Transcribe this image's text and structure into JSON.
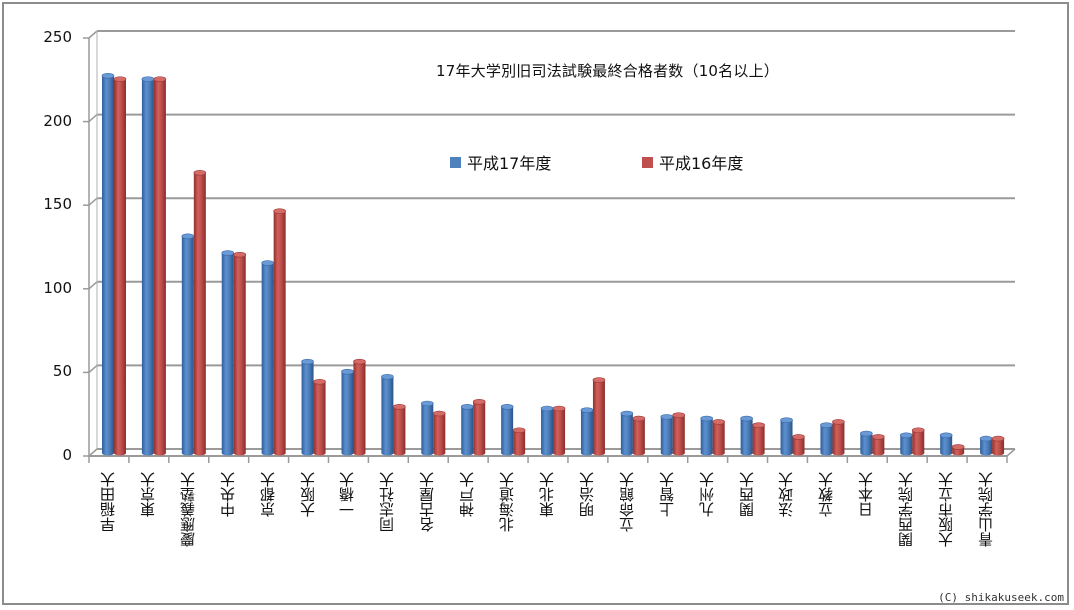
{
  "chart_data": {
    "type": "bar",
    "title": "17年大学別旧司法試験最終合格者数（10名以上）",
    "xlabel": "",
    "ylabel": "",
    "ylim": [
      0,
      250
    ],
    "yticks": [
      0,
      50,
      100,
      150,
      200,
      250
    ],
    "grid": true,
    "legend_position": "top-center",
    "style": "3d-cylinder",
    "categories": [
      "早稲田大",
      "東京大",
      "慶應義塾大",
      "中央大",
      "京都大",
      "大阪大",
      "一橋大",
      "同志社大",
      "名古屋大",
      "神戸大",
      "北海道大",
      "東北大",
      "明治大",
      "立命館大",
      "上智大",
      "九州大",
      "関西大",
      "法政大",
      "立教大",
      "日本大",
      "関西学院大",
      "大阪市立大",
      "青山学院大"
    ],
    "series": [
      {
        "name": "平成17年度",
        "color": "#4f81bd",
        "values": [
          228,
          226,
          132,
          122,
          116,
          57,
          51,
          48,
          32,
          30,
          30,
          29,
          28,
          26,
          24,
          23,
          23,
          22,
          19,
          14,
          13,
          13,
          11
        ]
      },
      {
        "name": "平成16年度",
        "color": "#c0504d",
        "values": [
          226,
          226,
          170,
          121,
          147,
          45,
          57,
          30,
          26,
          33,
          16,
          29,
          46,
          23,
          25,
          21,
          19,
          12,
          21,
          12,
          16,
          6,
          11
        ]
      }
    ]
  },
  "title": "17年大学別旧司法試験最終合格者数（10名以上）",
  "legend": [
    {
      "label": "平成17年度",
      "color": "#4f81bd"
    },
    {
      "label": "平成16年度",
      "color": "#c0504d"
    }
  ],
  "credit": "(C) shikakuseek.com"
}
